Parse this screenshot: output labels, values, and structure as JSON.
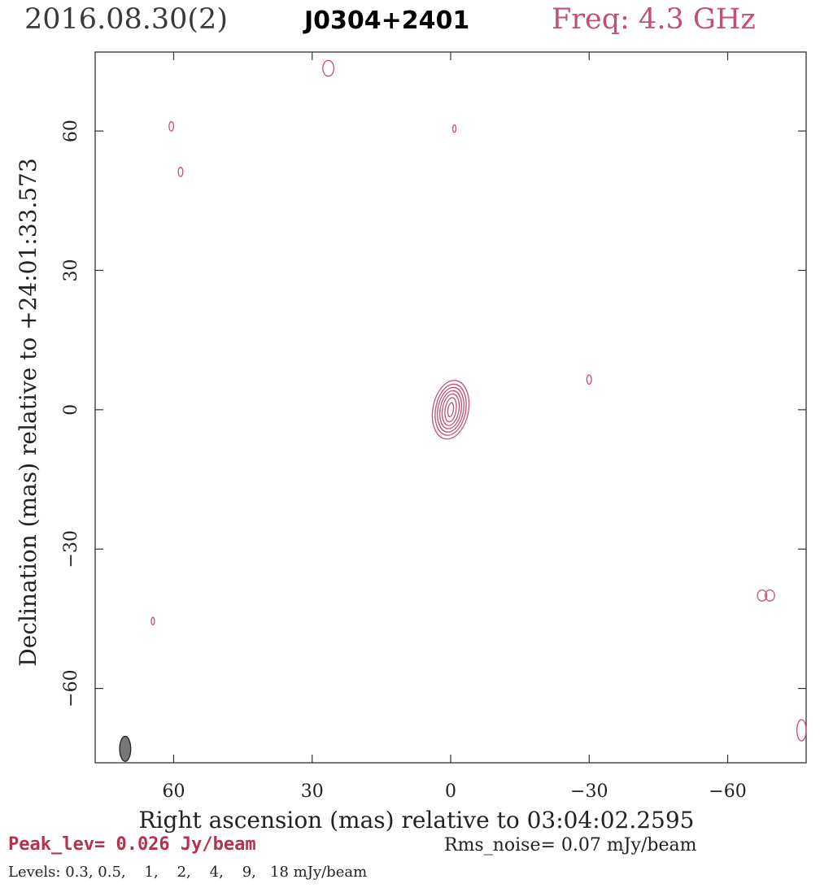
{
  "header": {
    "date": "2016.08.30(2)",
    "source": "J0304+2401",
    "freq": "Freq: 4.3 GHz"
  },
  "footer": {
    "peak": "Peak_lev=  0.026 Jy/beam",
    "rms": "Rms_noise= 0.07 mJy/beam",
    "levels": "Levels: 0.3, 0.5,    1,    2,    4,    9,   18 mJy/beam"
  },
  "colors": {
    "contour": "#c2506e",
    "beam": "#777777",
    "frame": "#333333"
  },
  "chart_data": {
    "type": "contour",
    "xlabel": "Right ascension (mas) relative to 03:04:02.2595",
    "ylabel": "Declination (mas) relative to +24:01:33.573",
    "xlim": [
      77,
      -77
    ],
    "ylim": [
      -76,
      77
    ],
    "xticks": [
      60,
      30,
      0,
      -30,
      -60
    ],
    "yticks": [
      60,
      30,
      0,
      -30,
      -60
    ],
    "xtick_labels": [
      "60",
      "30",
      "0",
      "−30",
      "−60"
    ],
    "ytick_labels": [
      "60",
      "30",
      "0",
      "−30",
      "−60"
    ],
    "contour_levels_mJy": [
      0.3,
      0.5,
      1,
      2,
      4,
      9,
      18
    ],
    "core": {
      "x": 0.0,
      "y": 0.0,
      "rings": [
        {
          "rx": 0.6,
          "ry": 1.5
        },
        {
          "rx": 1.2,
          "ry": 2.6
        },
        {
          "rx": 1.8,
          "ry": 3.4
        },
        {
          "rx": 2.3,
          "ry": 4.1
        },
        {
          "rx": 2.8,
          "ry": 4.8
        },
        {
          "rx": 3.3,
          "ry": 5.5
        },
        {
          "rx": 3.9,
          "ry": 6.3
        }
      ]
    },
    "islands": [
      {
        "x": 26.5,
        "y": 73.5,
        "rx": 1.2,
        "ry": 1.7
      },
      {
        "x": 60.5,
        "y": 61.0,
        "rx": 0.5,
        "ry": 1.0
      },
      {
        "x": -0.8,
        "y": 60.5,
        "rx": 0.35,
        "ry": 0.8
      },
      {
        "x": 58.5,
        "y": 51.2,
        "rx": 0.5,
        "ry": 1.0
      },
      {
        "x": -30.0,
        "y": 6.5,
        "rx": 0.5,
        "ry": 1.0
      },
      {
        "x": 64.5,
        "y": -45.5,
        "rx": 0.35,
        "ry": 0.8
      },
      {
        "x": -76.0,
        "y": -69.0,
        "rx": 1.0,
        "ry": 2.3
      }
    ],
    "double_islands": [
      {
        "x": -68.3,
        "y": -40.0,
        "rx": 1.0,
        "ry": 1.2,
        "sep": 1.7
      }
    ],
    "beam": {
      "x": 70.5,
      "y": -73.0,
      "rx": 1.2,
      "ry": 2.7
    }
  }
}
